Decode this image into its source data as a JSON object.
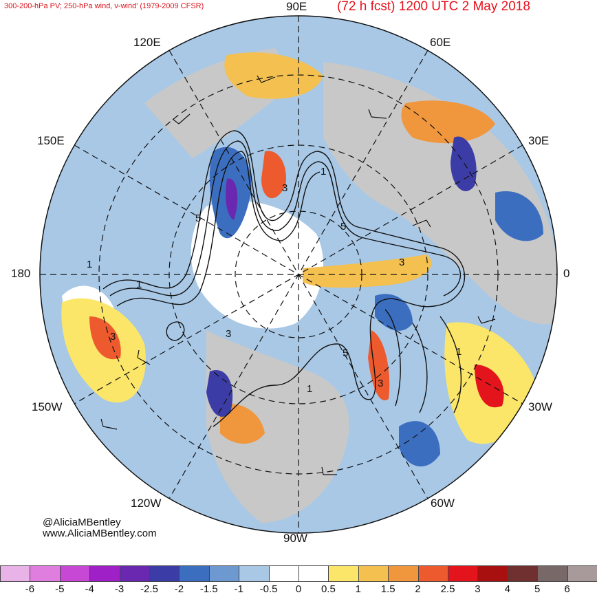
{
  "header": {
    "left_title": "300-200-hPa PV; 250-hPa wind, v-wind' (1979-2009 CFSR)",
    "right_title": "(72 h fcst) 1200 UTC 2 May 2018"
  },
  "longitude_labels": {
    "lon_90e": "90E",
    "lon_60e": "60E",
    "lon_30e": "30E",
    "lon_0": "0",
    "lon_30w": "30W",
    "lon_60w": "60W",
    "lon_90w": "90W",
    "lon_120w": "120W",
    "lon_150w": "150W",
    "lon_180": "180",
    "lon_150e": "150E",
    "lon_120e": "120E"
  },
  "contour_labels": [
    "5",
    "1",
    "3",
    "5",
    "1",
    "3",
    "5",
    "1",
    "3",
    "1",
    "3",
    "3",
    "1"
  ],
  "credits": {
    "handle": "@AliciaMBentley",
    "website": "www.AliciaMBentley.com"
  },
  "colorbar": {
    "tick_labels": [
      "-6",
      "-5",
      "-4",
      "-3",
      "-2.5",
      "-2",
      "-1.5",
      "-1",
      "-0.5",
      "0",
      "0.5",
      "1",
      "1.5",
      "2",
      "2.5",
      "3",
      "4",
      "5",
      "6"
    ],
    "colors": [
      "#e8b4e8",
      "#e07ee0",
      "#c848d6",
      "#a020c8",
      "#6a28b0",
      "#3c3ca6",
      "#3c6ec0",
      "#6e98d0",
      "#a8c8e6",
      "#ffffff",
      "#ffffff",
      "#fbe66a",
      "#f4c050",
      "#f0963c",
      "#ec5a2e",
      "#e4141c",
      "#a81010",
      "#703030",
      "#786868",
      "#a89a9a"
    ]
  },
  "colors": {
    "title_red": "#e8101a",
    "land_gray": "#c8c8c8",
    "contour_black": "#111111"
  }
}
